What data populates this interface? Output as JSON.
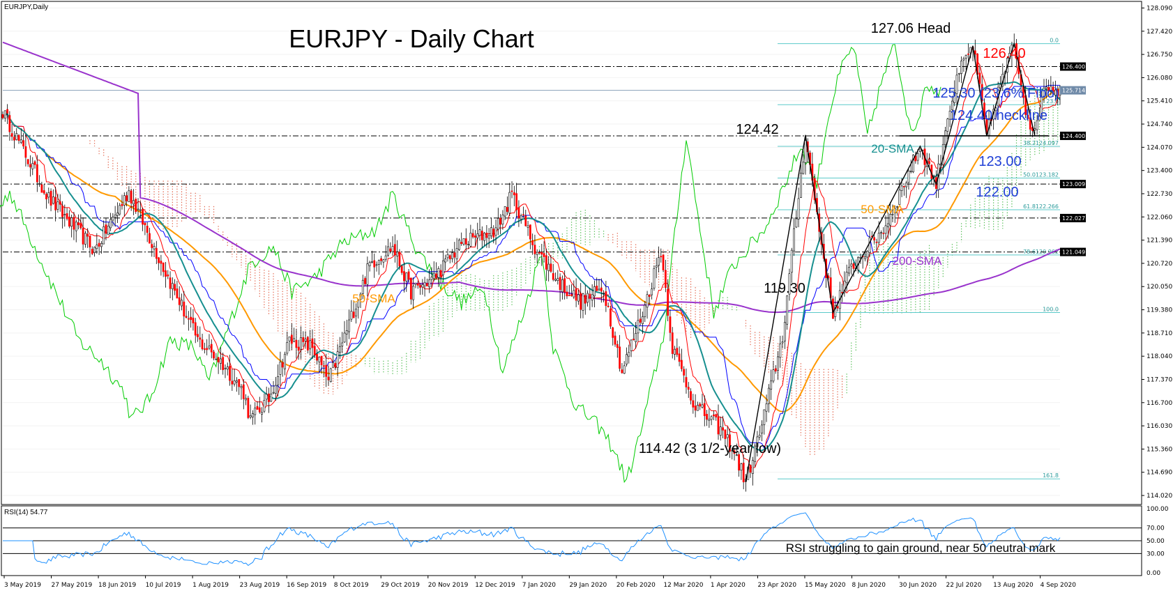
{
  "window": {
    "main_label": "EURJPY,Daily",
    "rsi_label": "RSI(14) 54.77"
  },
  "chart_data": [
    {
      "type": "candlestick",
      "title": "EURJPY - Daily Chart",
      "symbol": "EURJPY",
      "timeframe": "Daily",
      "y_range": [
        113.8,
        128.2
      ],
      "y_ticks": [
        "128.090",
        "127.420",
        "126.750",
        "126.080",
        "125.410",
        "124.740",
        "124.070",
        "123.400",
        "122.730",
        "122.060",
        "121.390",
        "120.720",
        "120.050",
        "119.380",
        "118.710",
        "118.040",
        "117.370",
        "116.700",
        "116.030",
        "115.360",
        "114.690",
        "114.020"
      ],
      "x_ticks": [
        "3 May 2019",
        "27 May 2019",
        "18 Jun 2019",
        "10 Jul 2019",
        "1 Aug 2019",
        "23 Aug 2019",
        "16 Sep 2019",
        "8 Oct 2019",
        "29 Oct 2019",
        "20 Nov 2019",
        "12 Dec 2019",
        "7 Jan 2020",
        "29 Jan 2020",
        "20 Feb 2020",
        "12 Mar 2020",
        "1 Apr 2020",
        "23 Apr 2020",
        "15 May 2020",
        "8 Jun 2020",
        "30 Jun 2020",
        "22 Jul 2020",
        "13 Aug 2020",
        "4 Sep 2020"
      ],
      "current_price": {
        "value": 125.714,
        "label": "125.714"
      },
      "horizontal_levels": [
        {
          "value": 126.4,
          "label": "126.400"
        },
        {
          "value": 124.4,
          "label": "124.400"
        },
        {
          "value": 123.009,
          "label": "123.009"
        },
        {
          "value": 122.027,
          "label": "122.027"
        },
        {
          "value": 121.049,
          "label": "121.049"
        }
      ],
      "fibonacci": [
        {
          "value": 127.06,
          "label": "0.0"
        },
        {
          "value": 125.3,
          "label": "23.6"
        },
        {
          "value": 124.097,
          "label": "38.2124.097"
        },
        {
          "value": 123.182,
          "label": "50.0123.182"
        },
        {
          "value": 122.266,
          "label": "61.8122.266"
        },
        {
          "value": 120.962,
          "label": "78.6120.962"
        },
        {
          "value": 119.3,
          "label": "100.0"
        },
        {
          "value": 114.5,
          "label": "161.8"
        }
      ],
      "price_waypoints": [
        [
          0,
          125.1
        ],
        [
          20,
          122.6
        ],
        [
          40,
          121.1
        ],
        [
          55,
          122.8
        ],
        [
          70,
          120.6
        ],
        [
          85,
          118.5
        ],
        [
          95,
          117.9
        ],
        [
          105,
          117.0
        ],
        [
          108,
          116.2
        ],
        [
          116,
          116.8
        ],
        [
          125,
          118.5
        ],
        [
          135,
          118.3
        ],
        [
          142,
          117.3
        ],
        [
          150,
          118.8
        ],
        [
          160,
          120.7
        ],
        [
          170,
          121.2
        ],
        [
          178,
          119.9
        ],
        [
          188,
          120.3
        ],
        [
          200,
          121.3
        ],
        [
          215,
          121.7
        ],
        [
          222,
          122.7
        ],
        [
          232,
          121.2
        ],
        [
          242,
          120.2
        ],
        [
          252,
          119.6
        ],
        [
          262,
          120.0
        ],
        [
          270,
          117.6
        ],
        [
          280,
          119.5
        ],
        [
          287,
          121.1
        ],
        [
          292,
          118.3
        ],
        [
          302,
          116.6
        ],
        [
          312,
          116.0
        ],
        [
          318,
          115.4
        ],
        [
          324,
          114.42
        ],
        [
          330,
          115.8
        ],
        [
          340,
          118.6
        ],
        [
          350,
          124.42
        ],
        [
          356,
          121.7
        ],
        [
          362,
          119.3
        ],
        [
          370,
          120.6
        ],
        [
          385,
          121.8
        ],
        [
          400,
          124.1
        ],
        [
          407,
          123.0
        ],
        [
          412,
          125.0
        ],
        [
          418,
          126.4
        ],
        [
          423,
          127.0
        ],
        [
          429,
          124.4
        ],
        [
          435,
          125.9
        ],
        [
          441,
          127.06
        ],
        [
          446,
          125.2
        ],
        [
          450,
          124.4
        ],
        [
          454,
          125.9
        ],
        [
          461,
          125.7
        ]
      ],
      "annotations": [
        {
          "text": "127.06 Head",
          "price": 127.06,
          "color": "#000000"
        },
        {
          "text": "126.40",
          "price": 126.4,
          "color": "#ff0000"
        },
        {
          "text": "125.30 (23.6% Fibo)",
          "price": 125.3,
          "color": "#1f3fd6"
        },
        {
          "text": "124.40 neckline",
          "price": 124.4,
          "color": "#1f3fd6"
        },
        {
          "text": "124.42",
          "price": 124.42,
          "color": "#000000"
        },
        {
          "text": "20-SMA",
          "indicator": "sma20",
          "color": "#168f8f"
        },
        {
          "text": "123.00",
          "price": 123.0,
          "color": "#1f3fd6"
        },
        {
          "text": "122.00",
          "price": 122.0,
          "color": "#1f3fd6"
        },
        {
          "text": "50-SMA",
          "indicator": "sma50",
          "color": "#ff9900"
        },
        {
          "text": "50-SMA",
          "indicator": "sma50",
          "color": "#ff9900"
        },
        {
          "text": "200-SMA",
          "indicator": "sma200",
          "color": "#9933cc"
        },
        {
          "text": "119.30",
          "price": 119.3,
          "color": "#000000"
        },
        {
          "text": "114.42 (3 1/2-year low)",
          "price": 114.42,
          "color": "#000000"
        }
      ],
      "colors": {
        "candle": "#ff0000",
        "wick": "#000000",
        "tenkan": "#ff0000",
        "kijun": "#0000ff",
        "chikou": "#00cc00",
        "sma20": "#168f8f",
        "sma50": "#ff9900",
        "sma200": "#9933cc",
        "cloud_bear": "#e0553a",
        "cloud_bull": "#44b844",
        "fibo": "#5ac9c9",
        "level": "#000000"
      }
    },
    {
      "type": "line",
      "title": "RSI(14) 54.77",
      "indicator": "RSI",
      "period": 14,
      "current": 54.77,
      "y_range": [
        0,
        100
      ],
      "y_ticks": [
        "100.00",
        "70.00",
        "50.00",
        "30.00",
        "0.00"
      ],
      "levels": [
        70,
        50,
        30
      ],
      "annotation": "RSI struggling to gain ground, near 50 neutral mark",
      "color": "#1e90ff"
    }
  ]
}
